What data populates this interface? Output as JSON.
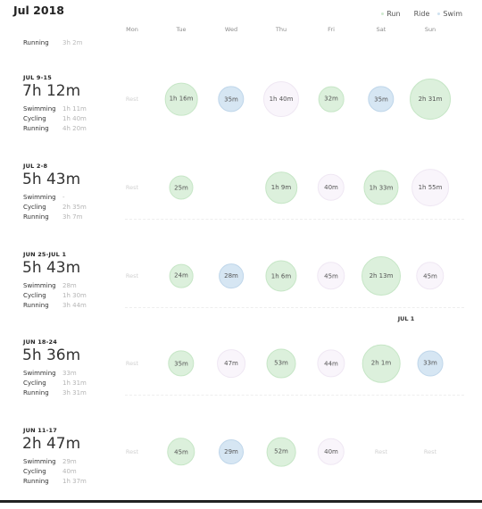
{
  "header": {
    "month": "Jul 2018",
    "legend": [
      {
        "label": "Run",
        "color": "#cfe9cf"
      },
      {
        "label": "Ride",
        "color": "#ffffff"
      },
      {
        "label": "Swim",
        "color": "#cfe1f0"
      }
    ]
  },
  "days": [
    "Mon",
    "Tue",
    "Wed",
    "Thu",
    "Fri",
    "Sat",
    "Sun"
  ],
  "cut_off_row": {
    "label": "Running",
    "value": "3h 2m"
  },
  "weeks": [
    {
      "range": "JUL 9-15",
      "total": "7h 12m",
      "stats": [
        {
          "label": "Swimming",
          "value": "1h 11m"
        },
        {
          "label": "Cycling",
          "value": "1h 40m"
        },
        {
          "label": "Running",
          "value": "4h 20m"
        }
      ],
      "days": [
        {
          "label": "Rest"
        },
        {
          "label": "1h 16m",
          "type": "run",
          "minutes": 76
        },
        {
          "label": "35m",
          "type": "swim",
          "minutes": 35
        },
        {
          "label": "1h 40m",
          "type": "ride",
          "minutes": 100
        },
        {
          "label": "32m",
          "type": "run",
          "minutes": 32
        },
        {
          "label": "35m",
          "type": "swim",
          "minutes": 35
        },
        {
          "label": "2h 31m",
          "type": "run",
          "minutes": 151
        }
      ]
    },
    {
      "range": "JUL 2-8",
      "total": "5h 43m",
      "stats": [
        {
          "label": "Swimming",
          "value": "-"
        },
        {
          "label": "Cycling",
          "value": "2h 35m"
        },
        {
          "label": "Running",
          "value": "3h 7m"
        }
      ],
      "days": [
        {
          "label": "Rest"
        },
        {
          "label": "25m",
          "type": "run",
          "minutes": 25
        },
        {
          "label": ""
        },
        {
          "label": "1h 9m",
          "type": "run",
          "minutes": 69
        },
        {
          "label": "40m",
          "type": "ride",
          "minutes": 40
        },
        {
          "label": "1h 33m",
          "type": "run",
          "minutes": 93
        },
        {
          "label": "1h 55m",
          "type": "ride",
          "minutes": 115
        }
      ]
    },
    {
      "range": "JUN 25-JUL 1",
      "total": "5h 43m",
      "stats": [
        {
          "label": "Swimming",
          "value": "28m"
        },
        {
          "label": "Cycling",
          "value": "1h 30m"
        },
        {
          "label": "Running",
          "value": "3h 44m"
        }
      ],
      "days": [
        {
          "label": "Rest"
        },
        {
          "label": "24m",
          "type": "run",
          "minutes": 24
        },
        {
          "label": "28m",
          "type": "swim",
          "minutes": 28
        },
        {
          "label": "1h 6m",
          "type": "run",
          "minutes": 66
        },
        {
          "label": "45m",
          "type": "ride",
          "minutes": 45
        },
        {
          "label": "2h 13m",
          "type": "run",
          "minutes": 133
        },
        {
          "label": "45m",
          "type": "ride",
          "minutes": 45
        }
      ]
    },
    {
      "range": "JUN 18-24",
      "total": "5h 36m",
      "stats": [
        {
          "label": "Swimming",
          "value": "33m"
        },
        {
          "label": "Cycling",
          "value": "1h 31m"
        },
        {
          "label": "Running",
          "value": "3h 31m"
        }
      ],
      "days": [
        {
          "label": "Rest"
        },
        {
          "label": "35m",
          "type": "run",
          "minutes": 35
        },
        {
          "label": "47m",
          "type": "ride",
          "minutes": 47
        },
        {
          "label": "53m",
          "type": "run",
          "minutes": 53
        },
        {
          "label": "44m",
          "type": "ride",
          "minutes": 44
        },
        {
          "label": "2h 1m",
          "type": "run",
          "minutes": 121
        },
        {
          "label": "33m",
          "type": "swim",
          "minutes": 33
        }
      ]
    },
    {
      "range": "JUN 11-17",
      "total": "2h 47m",
      "stats": [
        {
          "label": "Swimming",
          "value": "29m"
        },
        {
          "label": "Cycling",
          "value": "40m"
        },
        {
          "label": "Running",
          "value": "1h 37m"
        }
      ],
      "days": [
        {
          "label": "Rest"
        },
        {
          "label": "45m",
          "type": "run",
          "minutes": 45
        },
        {
          "label": "29m",
          "type": "swim",
          "minutes": 29
        },
        {
          "label": "52m",
          "type": "run",
          "minutes": 52
        },
        {
          "label": "40m",
          "type": "ride",
          "minutes": 40
        },
        {
          "label": "Rest"
        },
        {
          "label": "Rest"
        }
      ]
    }
  ],
  "month_marker": "JUL 1"
}
